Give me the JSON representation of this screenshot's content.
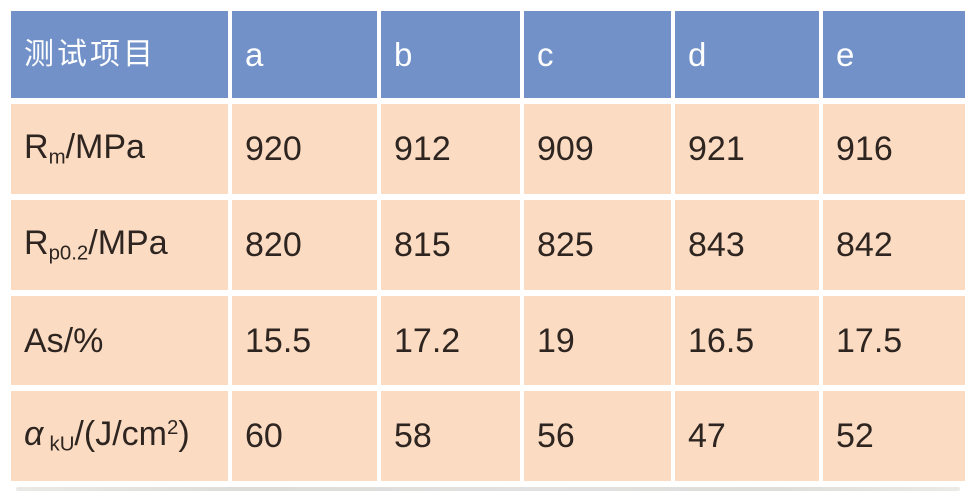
{
  "colors": {
    "header_bg": "#7191c8",
    "header_text": "#ffffff",
    "cell_bg": "#fbdcc3",
    "cell_text": "#2e2520",
    "divider": "#ffffff",
    "cropped_edge": "#d9d9d7"
  },
  "table": {
    "header": {
      "item_label": "测试项目",
      "columns": [
        "a",
        "b",
        "c",
        "d",
        "e"
      ]
    },
    "rows": [
      {
        "label_plain": "Rm/MPa",
        "label_segments": [
          {
            "text": "R"
          },
          {
            "text": "m",
            "type": "sub"
          },
          {
            "text": "/MPa"
          }
        ],
        "values": [
          "920",
          "912",
          "909",
          "921",
          "916"
        ]
      },
      {
        "label_plain": "Rp0.2/MPa",
        "label_segments": [
          {
            "text": "R"
          },
          {
            "text": "p0.2",
            "type": "sub"
          },
          {
            "text": "/MPa"
          }
        ],
        "values": [
          "820",
          "815",
          "825",
          "843",
          "842"
        ]
      },
      {
        "label_plain": "As/%",
        "label_segments": [
          {
            "text": "As/%"
          }
        ],
        "values": [
          "15.5",
          "17.2",
          "19",
          "16.5",
          "17.5"
        ]
      },
      {
        "label_plain": "αkU/(J/cm2)",
        "label_segments": [
          {
            "text": "α",
            "type": "italic"
          },
          {
            "text": "",
            "type": "space"
          },
          {
            "text": "kU",
            "type": "sub"
          },
          {
            "text": "/(J/cm"
          },
          {
            "text": "2",
            "type": "sup"
          },
          {
            "text": ")"
          }
        ],
        "values": [
          "60",
          "58",
          "56",
          "47",
          "52"
        ]
      }
    ]
  },
  "chart_data": {
    "type": "table",
    "columns": [
      "测试项目",
      "a",
      "b",
      "c",
      "d",
      "e"
    ],
    "rows": [
      [
        "Rm/MPa",
        920,
        912,
        909,
        921,
        916
      ],
      [
        "Rp0.2/MPa",
        820,
        815,
        825,
        843,
        842
      ],
      [
        "As/%",
        15.5,
        17.2,
        19,
        16.5,
        17.5
      ],
      [
        "αkU/(J/cm2)",
        60,
        58,
        56,
        47,
        52
      ]
    ]
  }
}
